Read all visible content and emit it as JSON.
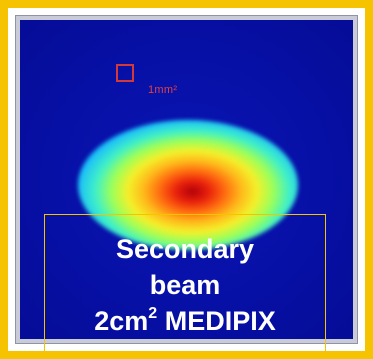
{
  "image": {
    "frame_color": "#F6C300",
    "detector_background": "#0a10a8",
    "scale_marker": {
      "label": "1mm²",
      "color": "#d23a3a"
    },
    "caption": {
      "line1": "Secondary",
      "line2": "beam",
      "line3_prefix": "2cm",
      "line3_sup": "2",
      "line3_suffix": " MEDIPIX"
    }
  }
}
